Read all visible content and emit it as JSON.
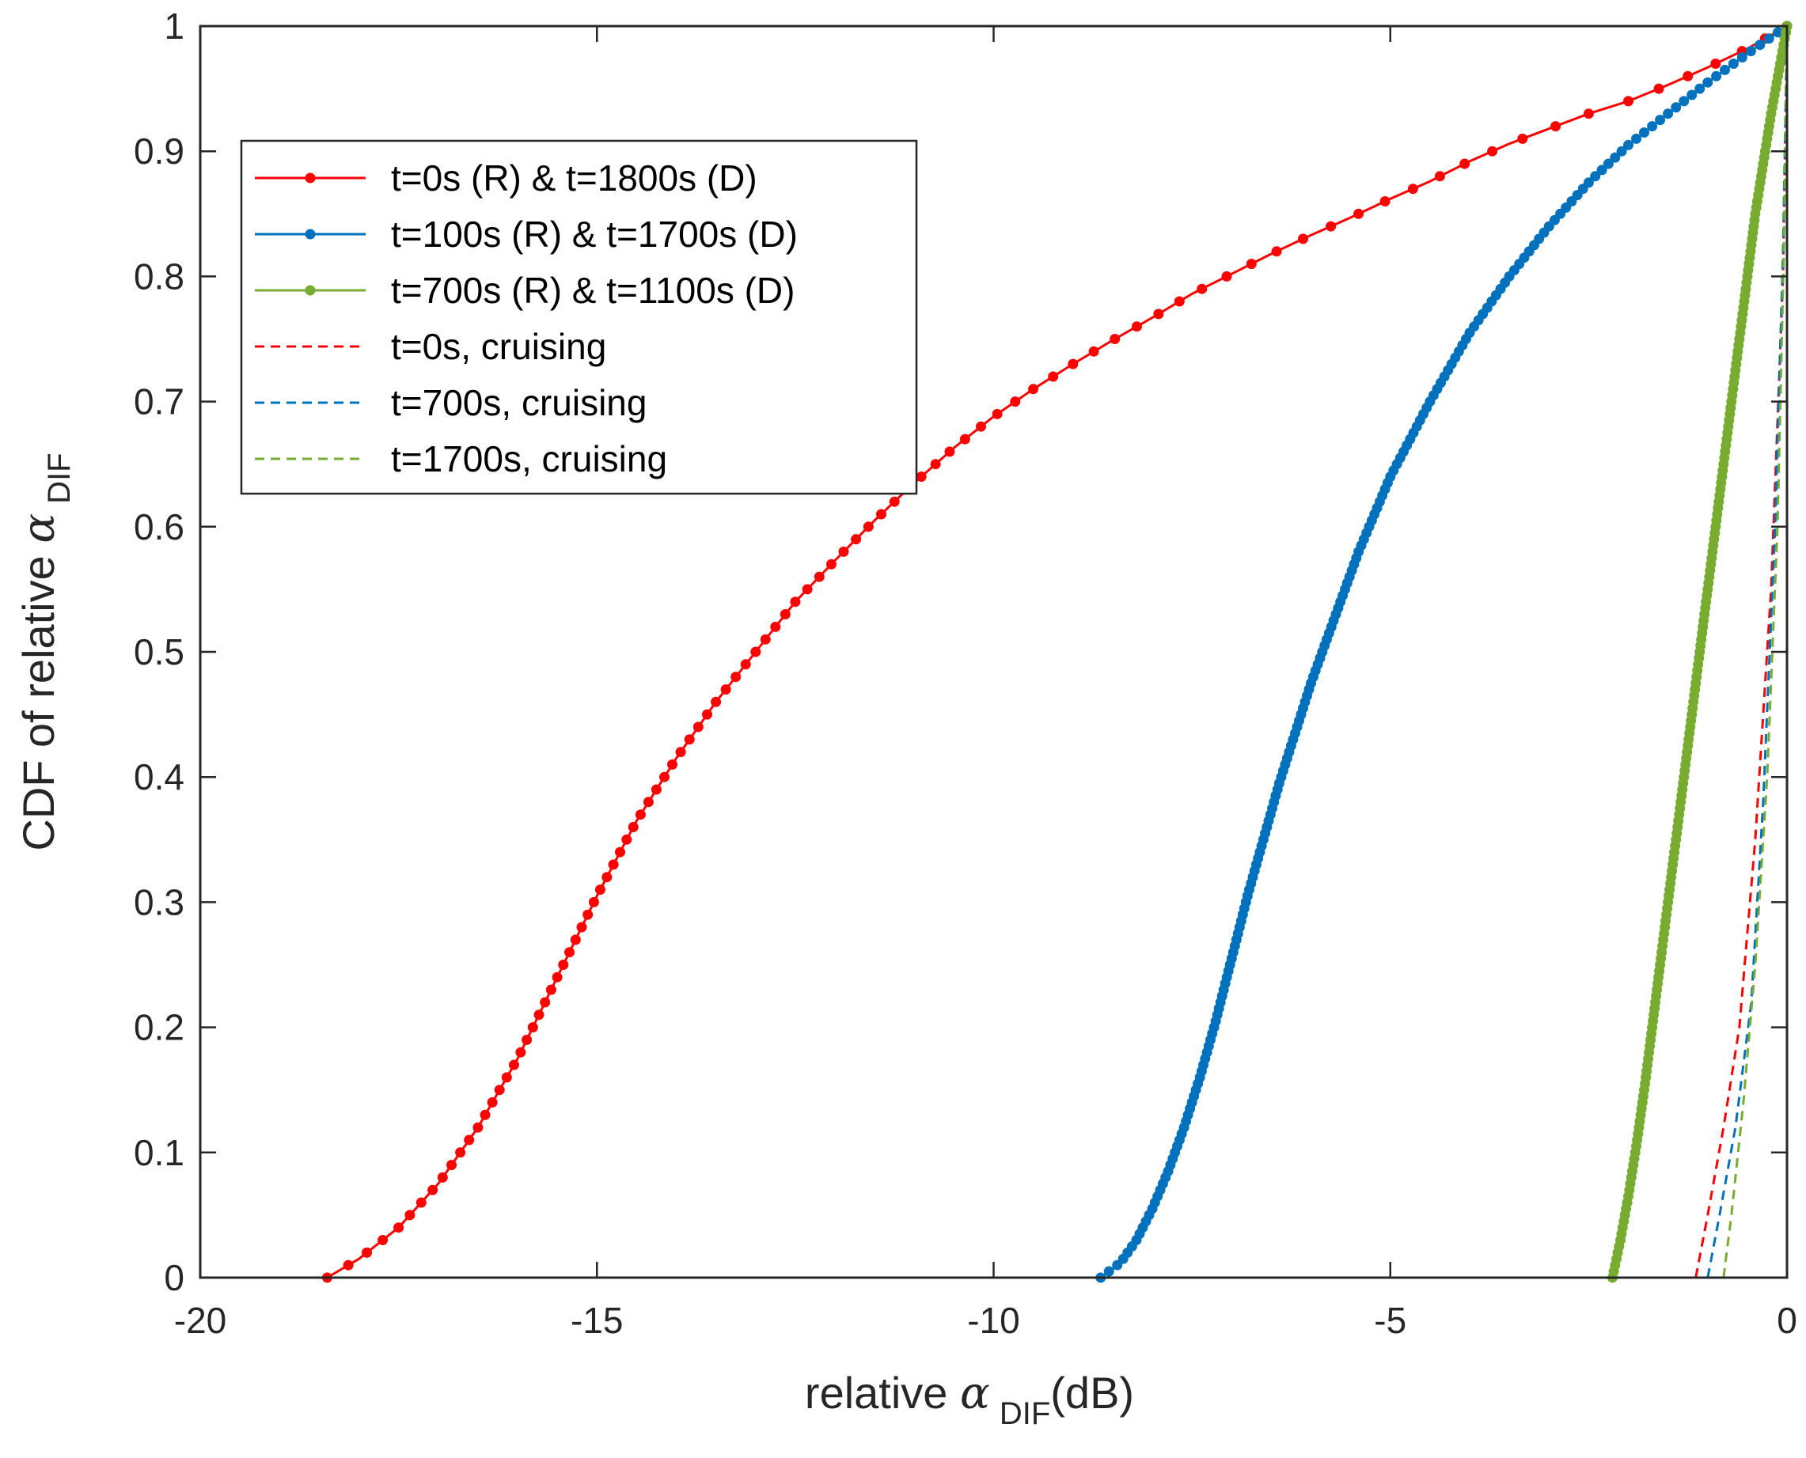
{
  "chart_data": {
    "type": "line",
    "title": "",
    "xlabel": {
      "prefix": "relative ",
      "symbol": "α",
      "subscript": "DIF",
      "suffix": "(dB)"
    },
    "ylabel": {
      "prefix": "CDF of relative ",
      "symbol": "α",
      "subscript": "DIF"
    },
    "xlim": [
      -20,
      0
    ],
    "ylim": [
      0,
      1
    ],
    "xticks": [
      -20,
      -15,
      -10,
      -5,
      0
    ],
    "xtick_labels": [
      "-20",
      "-15",
      "-10",
      "-5",
      "0"
    ],
    "yticks": [
      0,
      0.1,
      0.2,
      0.3,
      0.4,
      0.5,
      0.6,
      0.7,
      0.8,
      0.9,
      1
    ],
    "ytick_labels": [
      "0",
      "0.1",
      "0.2",
      "0.3",
      "0.4",
      "0.5",
      "0.6",
      "0.7",
      "0.8",
      "0.9",
      "1"
    ],
    "grid": false,
    "legend_position": "top-left",
    "series": [
      {
        "name": "t=0s (R) & t=1800s (D)",
        "color": "#ff0000",
        "style": "solid-markers",
        "markers": 101,
        "x": [
          -18.4,
          -18.0,
          -17.5,
          -17.0,
          -16.5,
          -16.0,
          -15.5,
          -15.0,
          -14.5,
          -14.0,
          -13.5,
          -13.0,
          -12.5,
          -12.0,
          -11.5,
          -11.0,
          -10.5,
          -10.0,
          -9.5,
          -9.0,
          -8.5,
          -8.0,
          -7.5,
          -7.0,
          -6.5,
          -6.0,
          -5.5,
          -5.0,
          -4.5,
          -4.0,
          -3.5,
          -3.0,
          -2.5,
          -2.0,
          -1.5,
          -1.0,
          -0.5,
          0.0
        ],
        "y": [
          0.0,
          0.015,
          0.04,
          0.075,
          0.12,
          0.175,
          0.24,
          0.305,
          0.365,
          0.415,
          0.46,
          0.5,
          0.54,
          0.573,
          0.605,
          0.635,
          0.663,
          0.688,
          0.71,
          0.73,
          0.749,
          0.767,
          0.786,
          0.802,
          0.818,
          0.833,
          0.847,
          0.862,
          0.876,
          0.892,
          0.906,
          0.918,
          0.93,
          0.94,
          0.953,
          0.967,
          0.982,
          1.0
        ]
      },
      {
        "name": "t=100s (R) & t=1700s (D)",
        "color": "#0072bd",
        "style": "solid-markers",
        "markers": 201,
        "x": [
          -8.65,
          -8.4,
          -8.2,
          -8.0,
          -7.8,
          -7.6,
          -7.4,
          -7.2,
          -7.0,
          -6.8,
          -6.6,
          -6.4,
          -6.2,
          -6.0,
          -5.8,
          -5.6,
          -5.4,
          -5.2,
          -5.0,
          -4.5,
          -4.0,
          -3.5,
          -3.0,
          -2.5,
          -2.0,
          -1.5,
          -1.0,
          -0.5,
          0.0
        ],
        "y": [
          0.0,
          0.012,
          0.03,
          0.055,
          0.085,
          0.12,
          0.16,
          0.205,
          0.255,
          0.305,
          0.35,
          0.395,
          0.435,
          0.475,
          0.51,
          0.545,
          0.58,
          0.61,
          0.64,
          0.7,
          0.755,
          0.8,
          0.84,
          0.875,
          0.905,
          0.93,
          0.955,
          0.978,
          1.0
        ]
      },
      {
        "name": "t=700s (R) & t=1100s (D)",
        "color": "#77ac30",
        "style": "solid-markers",
        "markers": 201,
        "x": [
          -2.2,
          -2.15,
          -2.1,
          -2.0,
          -1.9,
          -1.8,
          -1.7,
          -1.6,
          -1.5,
          -1.4,
          -1.3,
          -1.2,
          -1.1,
          -1.0,
          -0.9,
          -0.8,
          -0.7,
          -0.6,
          -0.5,
          -0.4,
          -0.3,
          -0.2,
          -0.1,
          0.0
        ],
        "y": [
          0.0,
          0.015,
          0.03,
          0.065,
          0.105,
          0.15,
          0.2,
          0.25,
          0.3,
          0.35,
          0.4,
          0.45,
          0.5,
          0.55,
          0.6,
          0.65,
          0.7,
          0.75,
          0.8,
          0.85,
          0.89,
          0.93,
          0.965,
          1.0
        ]
      },
      {
        "name": "t=0s, cruising",
        "color": "#ff0000",
        "style": "dashed",
        "x": [
          -1.15,
          -1.0,
          -0.8,
          -0.6,
          -0.4,
          -0.2,
          -0.05,
          0.0
        ],
        "y": [
          0.0,
          0.05,
          0.12,
          0.2,
          0.35,
          0.55,
          0.8,
          1.0
        ]
      },
      {
        "name": "t=700s, cruising",
        "color": "#0072bd",
        "style": "dashed",
        "x": [
          -1.0,
          -0.85,
          -0.65,
          -0.45,
          -0.3,
          -0.15,
          -0.05,
          0.0
        ],
        "y": [
          0.0,
          0.05,
          0.12,
          0.22,
          0.38,
          0.6,
          0.82,
          1.0
        ]
      },
      {
        "name": "t=1700s, cruising",
        "color": "#77ac30",
        "style": "dashed",
        "x": [
          -0.8,
          -0.7,
          -0.55,
          -0.4,
          -0.25,
          -0.12,
          -0.04,
          0.0
        ],
        "y": [
          0.0,
          0.05,
          0.14,
          0.25,
          0.4,
          0.6,
          0.82,
          1.0
        ]
      }
    ]
  }
}
